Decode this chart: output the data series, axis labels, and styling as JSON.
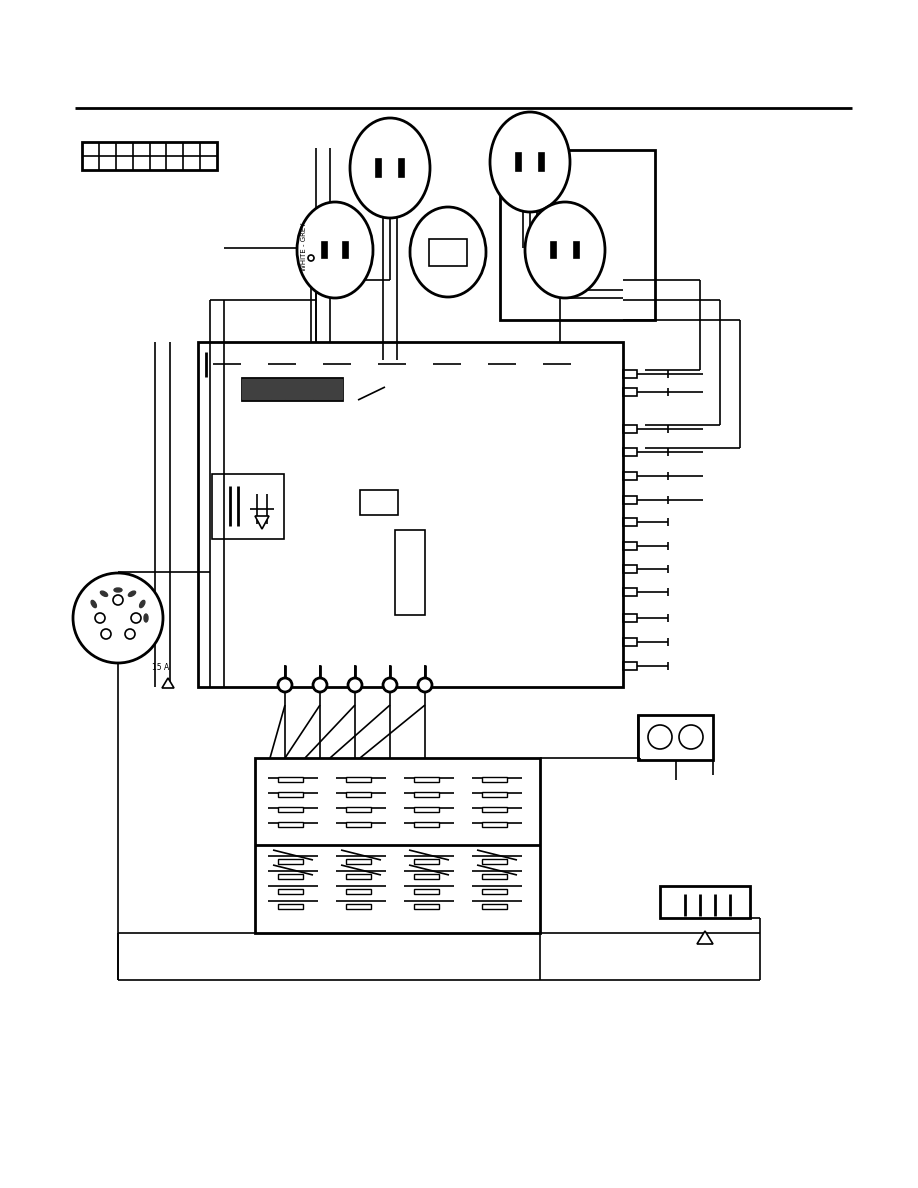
{
  "bg_color": "#ffffff",
  "lc": "#000000",
  "lw": 1.2,
  "lw2": 2.0,
  "fig_width": 9.18,
  "fig_height": 11.88
}
